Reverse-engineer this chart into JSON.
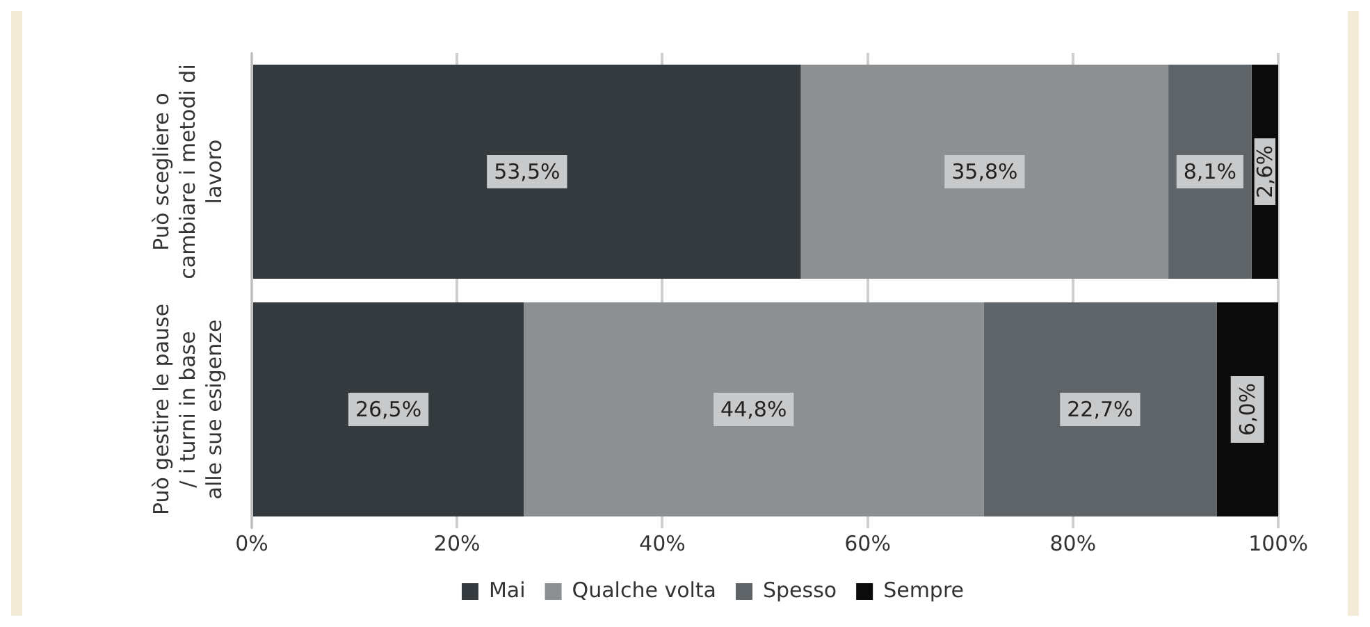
{
  "chart_data": {
    "type": "bar",
    "orientation": "horizontal",
    "stacked": true,
    "categories": [
      "Può scegliere o cambiare i metodi di lavoro",
      "Può gestire le pause / i turni in base alle sue esigenze"
    ],
    "series": [
      {
        "name": "Mai",
        "color": "#343a3e",
        "values": [
          53.5,
          26.5
        ],
        "value_labels": [
          "53,5%",
          "26,5%"
        ]
      },
      {
        "name": "Qualche volta",
        "color": "#8d9092",
        "values": [
          35.8,
          44.8
        ],
        "value_labels": [
          "35,8%",
          "44,8%"
        ]
      },
      {
        "name": "Spesso",
        "color": "#5e6468",
        "values": [
          8.1,
          22.7
        ],
        "value_labels": [
          "8,1%",
          "22,7%"
        ]
      },
      {
        "name": "Sempre",
        "color": "#0b0b0b",
        "values": [
          2.6,
          6.0
        ],
        "value_labels": [
          "2,6%",
          "6,0%"
        ]
      }
    ],
    "xlim": [
      0,
      100
    ],
    "xticks": [
      {
        "value": 0,
        "label": "0%"
      },
      {
        "value": 20,
        "label": "20%"
      },
      {
        "value": 40,
        "label": "40%"
      },
      {
        "value": 60,
        "label": "60%"
      },
      {
        "value": 80,
        "label": "80%"
      },
      {
        "value": 100,
        "label": "100%"
      }
    ],
    "grid": "x",
    "legend": "bottom"
  }
}
